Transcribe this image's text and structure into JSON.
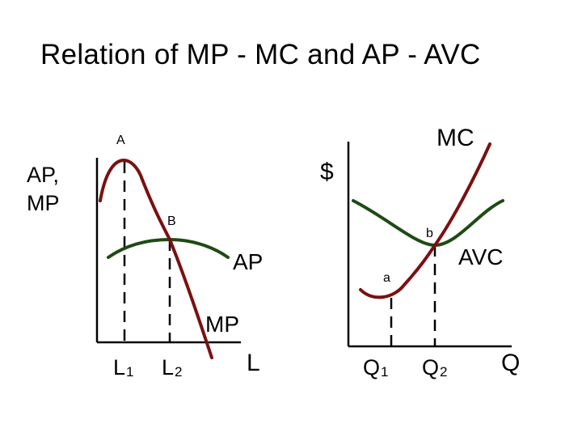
{
  "title": "Relation of MP - MC and AP - AVC",
  "colors": {
    "marginal_curve": "#7a1010",
    "average_curve": "#1f4a14",
    "axes": "#000000",
    "guides": "#000000",
    "background": "#ffffff"
  },
  "left_panel": {
    "y_axis_label_line1": "AP,",
    "y_axis_label_line2": "MP",
    "x_axis_label": "L",
    "point_A": "A",
    "point_B": "B",
    "curve_AP": "AP",
    "curve_MP": "MP",
    "tick_L1": "L",
    "tick_L1_sub": "1",
    "tick_L2": "L",
    "tick_L2_sub": "2"
  },
  "right_panel": {
    "y_axis_label": "$",
    "x_axis_label": "Q",
    "point_a": "a",
    "point_b": "b",
    "curve_MC": "MC",
    "curve_AVC": "AVC",
    "tick_Q1": "Q",
    "tick_Q1_sub": "1",
    "tick_Q2": "Q",
    "tick_Q2_sub": "2"
  }
}
